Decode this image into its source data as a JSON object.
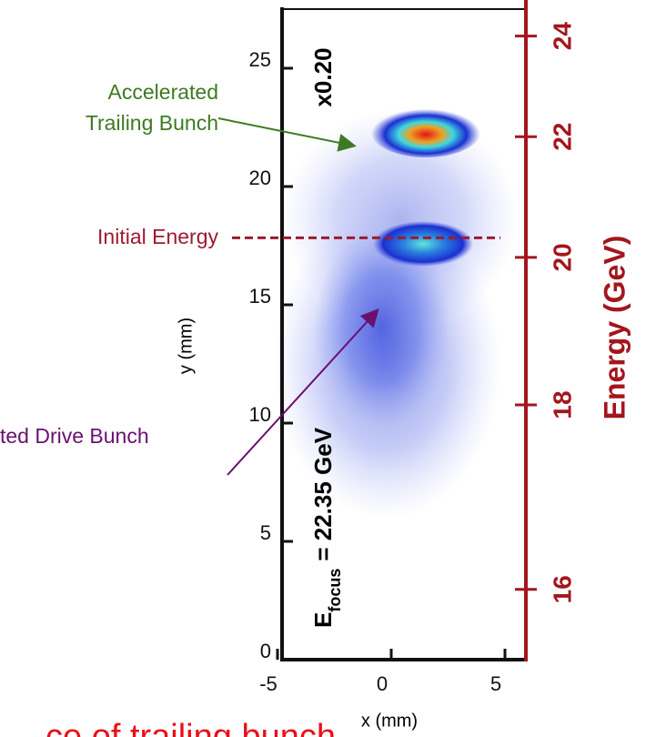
{
  "chart_data": {
    "type": "image",
    "xlabel": "x (mm)",
    "ylabel": "y (mm)",
    "y2label": "Energy (GeV)",
    "xlim": [
      -5,
      6
    ],
    "xticks": [
      -5,
      0,
      5
    ],
    "ylim": [
      0,
      27.5
    ],
    "yticks": [
      0,
      5,
      10,
      15,
      20,
      25
    ],
    "y2lim": [
      15.35,
      24.6
    ],
    "y2scale": "reciprocal",
    "y2ticks": [
      16,
      18,
      20,
      22,
      24
    ],
    "y2color": "#a3161c",
    "scale_label": "x0.20",
    "focus_label": {
      "main": "E",
      "sub": "focus",
      "rest": "= 22.35 GeV"
    },
    "annotations": [
      {
        "text": [
          "Accelerated",
          "Trailing Bunch"
        ],
        "color": "#3d7a22"
      },
      {
        "text": [
          "Initial Energy"
        ],
        "color": "#9b1b30",
        "value": 20.3
      },
      {
        "text": [
          "ted Drive Bunch"
        ],
        "color": "#6b1070"
      }
    ],
    "footer": "ce of trailing bunch"
  }
}
